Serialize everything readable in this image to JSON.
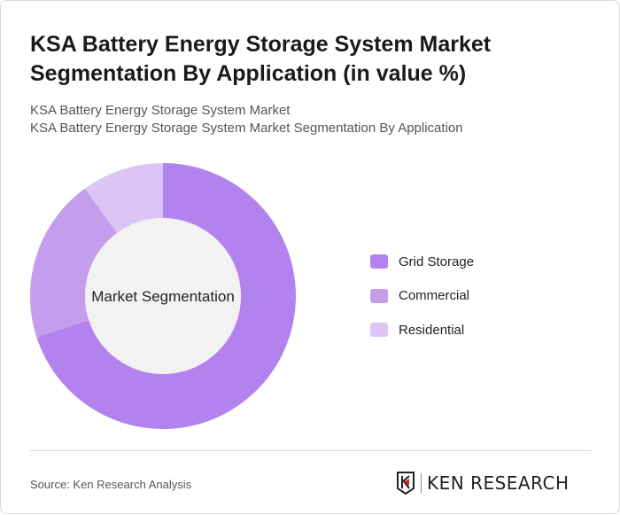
{
  "header": {
    "title": "KSA Battery Energy Storage System Market Segmentation By Application (in value %)",
    "subtitle1": "KSA Battery Energy Storage System Market",
    "subtitle2": "KSA Battery Energy Storage System Market Segmentation By Application"
  },
  "chart_data": {
    "type": "pie",
    "variant": "donut",
    "center_label": "Market Segmentation",
    "categories": [
      "Grid Storage",
      "Commercial",
      "Residential"
    ],
    "values": [
      70,
      20,
      10
    ],
    "colors": [
      "#b283ee",
      "#c59ded",
      "#dcc5f5"
    ],
    "hole_color": "#f2f2f2",
    "legend_position": "right"
  },
  "footer": {
    "source": "Source: Ken Research Analysis",
    "logo_text": "KEN RESEARCH"
  }
}
